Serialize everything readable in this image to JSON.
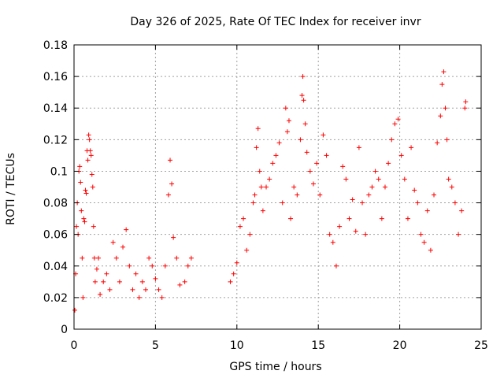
{
  "chart_data": {
    "type": "scatter",
    "title": "Day 326 of 2025, Rate Of TEC Index for receiver invr",
    "xlabel": "GPS time / hours",
    "ylabel": "ROTI / TECUs",
    "xlim": [
      0,
      25
    ],
    "ylim": [
      0,
      0.18
    ],
    "xticks": [
      0,
      5,
      10,
      15,
      20,
      25
    ],
    "yticks": [
      0,
      0.02,
      0.04,
      0.06,
      0.08,
      0.1,
      0.12,
      0.14,
      0.16,
      0.18
    ],
    "xtick_labels": [
      "0",
      "5",
      "10",
      "15",
      "20",
      "25"
    ],
    "ytick_labels": [
      "0",
      "0.02",
      "0.04",
      "0.06",
      "0.08",
      "0.1",
      "0.12",
      "0.14",
      "0.16",
      "0.18"
    ],
    "grid": true,
    "marker": "plus",
    "color": "#ff0000",
    "series": [
      {
        "points": [
          [
            0.05,
            0.012
          ],
          [
            0.1,
            0.035
          ],
          [
            0.15,
            0.065
          ],
          [
            0.2,
            0.08
          ],
          [
            0.25,
            0.06
          ],
          [
            0.3,
            0.1
          ],
          [
            0.35,
            0.103
          ],
          [
            0.4,
            0.093
          ],
          [
            0.45,
            0.075
          ],
          [
            0.5,
            0.045
          ],
          [
            0.55,
            0.02
          ],
          [
            0.6,
            0.07
          ],
          [
            0.65,
            0.068
          ],
          [
            0.7,
            0.088
          ],
          [
            0.75,
            0.086
          ],
          [
            0.8,
            0.113
          ],
          [
            0.85,
            0.107
          ],
          [
            0.9,
            0.123
          ],
          [
            0.95,
            0.12
          ],
          [
            1.0,
            0.113
          ],
          [
            1.05,
            0.11
          ],
          [
            1.1,
            0.098
          ],
          [
            1.15,
            0.09
          ],
          [
            1.2,
            0.065
          ],
          [
            1.25,
            0.045
          ],
          [
            1.3,
            0.03
          ],
          [
            1.4,
            0.038
          ],
          [
            1.5,
            0.045
          ],
          [
            1.6,
            0.022
          ],
          [
            1.8,
            0.03
          ],
          [
            2.0,
            0.035
          ],
          [
            2.2,
            0.025
          ],
          [
            2.4,
            0.055
          ],
          [
            2.6,
            0.045
          ],
          [
            2.8,
            0.03
          ],
          [
            3.0,
            0.052
          ],
          [
            3.2,
            0.063
          ],
          [
            3.4,
            0.04
          ],
          [
            3.6,
            0.025
          ],
          [
            3.8,
            0.035
          ],
          [
            4.0,
            0.02
          ],
          [
            4.2,
            0.03
          ],
          [
            4.4,
            0.025
          ],
          [
            4.6,
            0.045
          ],
          [
            4.8,
            0.04
          ],
          [
            5.0,
            0.032
          ],
          [
            5.2,
            0.025
          ],
          [
            5.4,
            0.02
          ],
          [
            5.6,
            0.04
          ],
          [
            5.8,
            0.085
          ],
          [
            5.9,
            0.107
          ],
          [
            6.0,
            0.092
          ],
          [
            6.1,
            0.058
          ],
          [
            6.3,
            0.045
          ],
          [
            6.5,
            0.028
          ],
          [
            6.8,
            0.03
          ],
          [
            7.0,
            0.04
          ],
          [
            7.2,
            0.045
          ],
          [
            9.6,
            0.03
          ],
          [
            9.8,
            0.035
          ],
          [
            10.0,
            0.042
          ],
          [
            10.2,
            0.065
          ],
          [
            10.4,
            0.07
          ],
          [
            10.6,
            0.05
          ],
          [
            10.8,
            0.06
          ],
          [
            11.0,
            0.08
          ],
          [
            11.1,
            0.085
          ],
          [
            11.2,
            0.115
          ],
          [
            11.3,
            0.127
          ],
          [
            11.4,
            0.1
          ],
          [
            11.5,
            0.09
          ],
          [
            11.6,
            0.075
          ],
          [
            11.8,
            0.09
          ],
          [
            12.0,
            0.095
          ],
          [
            12.2,
            0.105
          ],
          [
            12.4,
            0.11
          ],
          [
            12.6,
            0.118
          ],
          [
            12.8,
            0.08
          ],
          [
            13.0,
            0.14
          ],
          [
            13.1,
            0.125
          ],
          [
            13.2,
            0.132
          ],
          [
            13.3,
            0.07
          ],
          [
            13.5,
            0.09
          ],
          [
            13.7,
            0.085
          ],
          [
            13.9,
            0.12
          ],
          [
            14.0,
            0.148
          ],
          [
            14.05,
            0.16
          ],
          [
            14.1,
            0.145
          ],
          [
            14.2,
            0.13
          ],
          [
            14.3,
            0.112
          ],
          [
            14.5,
            0.1
          ],
          [
            14.7,
            0.092
          ],
          [
            14.9,
            0.105
          ],
          [
            15.1,
            0.085
          ],
          [
            15.3,
            0.123
          ],
          [
            15.5,
            0.11
          ],
          [
            15.7,
            0.06
          ],
          [
            15.9,
            0.055
          ],
          [
            16.1,
            0.04
          ],
          [
            16.3,
            0.065
          ],
          [
            16.5,
            0.103
          ],
          [
            16.7,
            0.095
          ],
          [
            16.9,
            0.07
          ],
          [
            17.1,
            0.082
          ],
          [
            17.3,
            0.062
          ],
          [
            17.5,
            0.115
          ],
          [
            17.7,
            0.08
          ],
          [
            17.9,
            0.06
          ],
          [
            18.1,
            0.085
          ],
          [
            18.3,
            0.09
          ],
          [
            18.5,
            0.1
          ],
          [
            18.7,
            0.095
          ],
          [
            18.9,
            0.07
          ],
          [
            19.1,
            0.09
          ],
          [
            19.3,
            0.105
          ],
          [
            19.5,
            0.12
          ],
          [
            19.7,
            0.13
          ],
          [
            19.9,
            0.133
          ],
          [
            20.1,
            0.11
          ],
          [
            20.3,
            0.095
          ],
          [
            20.5,
            0.07
          ],
          [
            20.7,
            0.115
          ],
          [
            20.9,
            0.088
          ],
          [
            21.1,
            0.08
          ],
          [
            21.3,
            0.06
          ],
          [
            21.5,
            0.055
          ],
          [
            21.7,
            0.075
          ],
          [
            21.9,
            0.05
          ],
          [
            22.1,
            0.085
          ],
          [
            22.3,
            0.118
          ],
          [
            22.5,
            0.135
          ],
          [
            22.6,
            0.155
          ],
          [
            22.7,
            0.163
          ],
          [
            22.8,
            0.14
          ],
          [
            22.9,
            0.12
          ],
          [
            23.0,
            0.095
          ],
          [
            23.2,
            0.09
          ],
          [
            23.4,
            0.08
          ],
          [
            23.6,
            0.06
          ],
          [
            23.8,
            0.075
          ],
          [
            24.0,
            0.14
          ],
          [
            24.05,
            0.144
          ]
        ]
      }
    ]
  }
}
